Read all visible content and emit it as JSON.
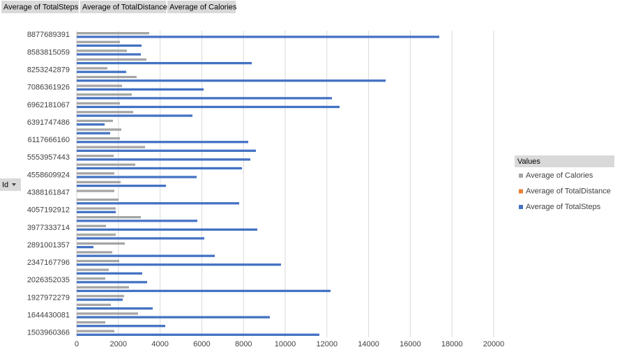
{
  "chart_data": {
    "type": "bar",
    "orientation": "horizontal",
    "y_label": "Id",
    "legend_title": "Values",
    "categories": [
      "1503960366",
      null,
      "1644430081",
      null,
      "1927972279",
      null,
      "2026352035",
      null,
      "2347167796",
      null,
      "2891001357",
      null,
      "3977333714",
      null,
      "4057192912",
      null,
      "4388161847",
      null,
      "4558609924",
      null,
      "5553957443",
      null,
      "6117666160",
      null,
      "6391747486",
      null,
      "6962181067",
      null,
      "7086361926",
      null,
      "8253242879",
      null,
      "8583815059",
      null,
      "8877689391"
    ],
    "series": [
      {
        "name": "Average of TotalSteps",
        "color": "#4472c4",
        "values": [
          11639,
          4247,
          9264,
          3645,
          2207,
          12174,
          3378,
          3144,
          9799,
          6622,
          803,
          6120,
          8662,
          5786,
          1873,
          7793,
          0,
          4281,
          5753,
          7926,
          8328,
          8595,
          8227,
          1605,
          1338,
          5552,
          12609,
          12241,
          6087,
          14816,
          2375,
          8395,
          3077,
          3110,
          17390
        ]
      },
      {
        "name": "Average of TotalDistance",
        "color": "#ed7d31",
        "values": [
          8.3,
          3.0,
          6.6,
          2.6,
          1.6,
          8.7,
          2.4,
          2.2,
          7.0,
          4.7,
          0.6,
          4.4,
          6.2,
          4.1,
          1.3,
          5.6,
          0,
          3.1,
          4.1,
          5.7,
          5.9,
          6.1,
          5.9,
          1.1,
          1.0,
          4.0,
          9.0,
          8.7,
          4.3,
          10.6,
          1.7,
          6.0,
          2.2,
          2.2,
          12.4
        ]
      },
      {
        "name": "Average of Calories",
        "color": "#a5a5a5",
        "values": [
          1806,
          1371,
          2943,
          1639,
          2274,
          2508,
          1371,
          1538,
          2040,
          1706,
          2308,
          1873,
          1405,
          3077,
          1873,
          2007,
          1806,
          2107,
          1806,
          2809,
          1773,
          3278,
          2073,
          2140,
          1739,
          2709,
          2073,
          2642,
          2174,
          2876,
          1472,
          3344,
          2408,
          2073,
          3478
        ]
      }
    ],
    "xlim": [
      0,
      20000
    ],
    "xticks": [
      0,
      2000,
      4000,
      6000,
      8000,
      10000,
      12000,
      14000,
      16000,
      18000,
      20000
    ],
    "grid": true,
    "legend": "right"
  }
}
